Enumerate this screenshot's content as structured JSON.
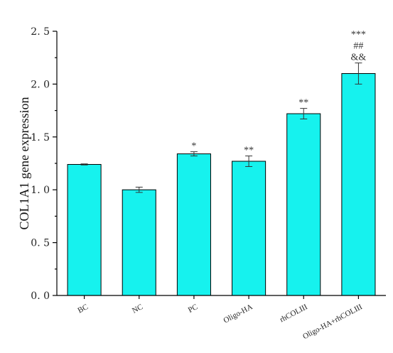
{
  "chart_data": {
    "type": "bar",
    "title": "",
    "xlabel": "",
    "ylabel": "COL1A1 gene expression",
    "ylim": [
      0,
      2.5
    ],
    "yticks": [
      "0.0",
      "0.5",
      "1.0",
      "1.5",
      "2.0",
      "2.5"
    ],
    "categories": [
      "BC",
      "NC",
      "PC",
      "Oligo-HA",
      "rhCOLIII",
      "Oligo-HA+rhCOLIII"
    ],
    "values": [
      1.24,
      1.0,
      1.34,
      1.27,
      1.72,
      2.1
    ],
    "errors": [
      0.005,
      0.025,
      0.02,
      0.05,
      0.05,
      0.1
    ],
    "significance": [
      [],
      [],
      [
        "*"
      ],
      [
        "**"
      ],
      [
        "**"
      ],
      [
        "***",
        "##",
        "&&"
      ]
    ],
    "colors": {
      "bar": "#16f2ee",
      "edge": "#000000"
    },
    "grid": false
  }
}
